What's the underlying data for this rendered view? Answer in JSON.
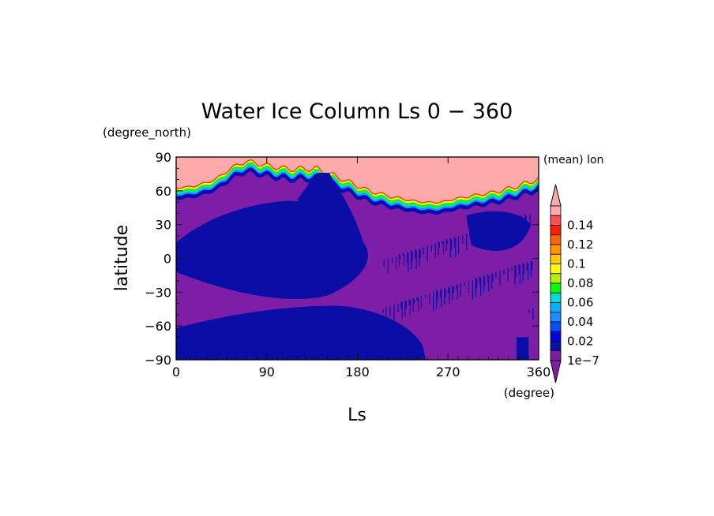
{
  "chart_data": {
    "type": "heatmap",
    "title": "Water Ice Column Ls 0 − 360",
    "xlabel": "Ls",
    "ylabel": "latitude",
    "x_units": "(degree)",
    "y_units": "(degree_north)",
    "xlim": [
      0,
      360
    ],
    "ylim": [
      -90,
      90
    ],
    "x_ticks": [
      "0",
      "90",
      "180",
      "270",
      "360"
    ],
    "y_ticks": [
      "90",
      "60",
      "30",
      "0",
      "−30",
      "−60",
      "−90"
    ],
    "annotation": "(mean) lon",
    "grid": false,
    "colorbar": {
      "labels": [
        "1e−7",
        "0.02",
        "0.04",
        "0.06",
        "0.08",
        "0.1",
        "0.12",
        "0.14"
      ],
      "colors": [
        "#7e1ea6",
        "#0a0ea6",
        "#0000e0",
        "#0050ff",
        "#1e8cff",
        "#00b4ff",
        "#00dcdc",
        "#00ff00",
        "#b4f000",
        "#ffff00",
        "#ffc800",
        "#ff9600",
        "#ff6400",
        "#ff1e00",
        "#ff5050",
        "#ffaaaa"
      ],
      "under_color": "#7e1ea6",
      "over_color": "#ffaaaa"
    },
    "regions": {
      "missing_polar_cap_color": "#ffaaaa",
      "low_value_color": "#7e1ea6",
      "level1_color": "#0a0ea6"
    },
    "ice_edge_lat": [
      [
        0,
        62
      ],
      [
        20,
        64
      ],
      [
        40,
        70
      ],
      [
        55,
        80
      ],
      [
        70,
        86
      ],
      [
        90,
        82
      ],
      [
        110,
        79
      ],
      [
        140,
        79
      ],
      [
        165,
        70
      ],
      [
        190,
        60
      ],
      [
        215,
        54
      ],
      [
        240,
        50
      ],
      [
        260,
        49
      ],
      [
        280,
        53
      ],
      [
        300,
        56
      ],
      [
        320,
        59
      ],
      [
        340,
        64
      ],
      [
        360,
        70
      ]
    ]
  }
}
